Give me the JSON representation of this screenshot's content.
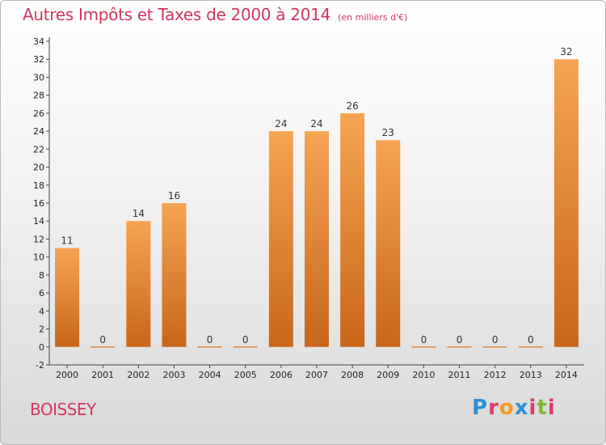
{
  "title": "Autres Impôts et Taxes de 2000 à 2014",
  "subtitle": "(en milliers d'€)",
  "commune": "BOISSEY",
  "logo": {
    "letters": [
      "P",
      "r",
      "o",
      "x",
      "i",
      "t",
      "i"
    ]
  },
  "colors": {
    "bar_top": "#f6a454",
    "bar_bottom": "#c8661a",
    "title": "#d1365f",
    "logo": [
      "#2c8fd2",
      "#e5356c",
      "#f29a1f",
      "#2c8fd2",
      "#e5356c",
      "#7cb92d",
      "#e5356c"
    ]
  },
  "chart_data": {
    "type": "bar",
    "categories": [
      "2000",
      "2001",
      "2002",
      "2003",
      "2004",
      "2005",
      "2006",
      "2007",
      "2008",
      "2009",
      "2010",
      "2011",
      "2012",
      "2013",
      "2014"
    ],
    "values": [
      11,
      0,
      14,
      16,
      0,
      0,
      24,
      24,
      26,
      23,
      0,
      0,
      0,
      0,
      32
    ],
    "ylim": [
      -2,
      34
    ],
    "yticks": [
      -2,
      0,
      2,
      4,
      6,
      8,
      10,
      12,
      14,
      16,
      18,
      20,
      22,
      24,
      26,
      28,
      30,
      32,
      34
    ],
    "grid": false
  }
}
